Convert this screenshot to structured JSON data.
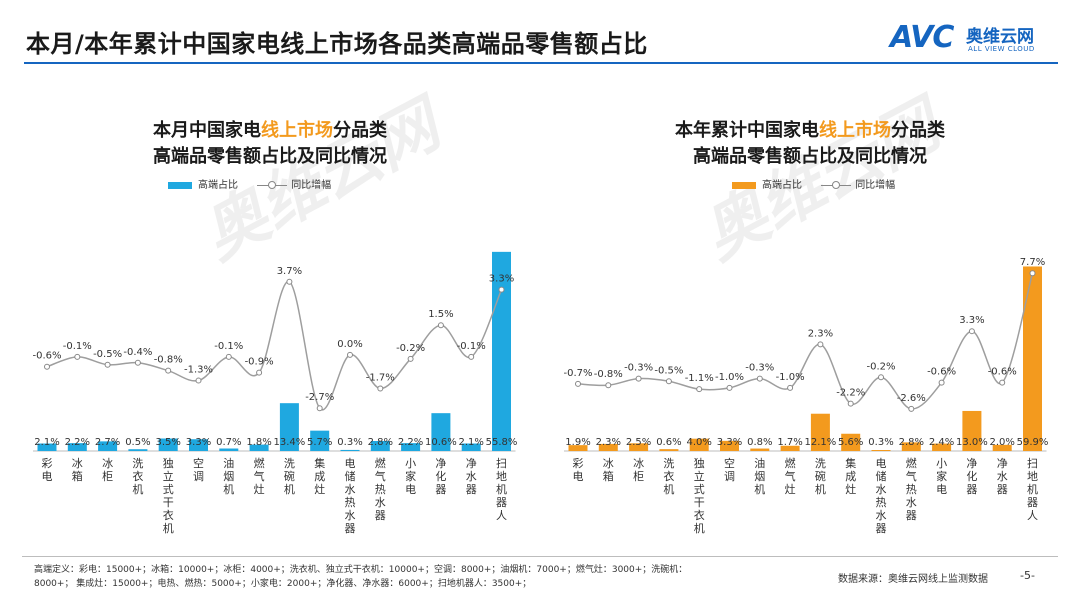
{
  "page": {
    "title": "本月/本年累计中国家电线上市场各品类高端品零售额占比",
    "logo": {
      "mark": "AVC",
      "name_cn": "奥维云网",
      "name_en": "ALL VIEW CLOUD"
    },
    "footnote": "高端定义：彩电：15000+；冰箱：10000+；冰柜：4000+；洗衣机、独立式干衣机：10000+；空调：8000+；油烟机：7000+；燃气灶：3000+；洗碗机：8000+；    集成灶：15000+；电热、燃热：5000+；小家电：2000+；净化器、净水器：6000+；扫地机器人：3500+；",
    "source": "数据来源：奥维云网线上监测数据",
    "page_number": "-5-",
    "watermark": "奥维云网",
    "colors": {
      "accent_blue": "#1565c0",
      "bar_left": "#1fa8e0",
      "bar_right": "#f39a1e",
      "line": "#9e9e9e",
      "highlight": "#f39a1e"
    }
  },
  "chart_data": [
    {
      "type": "bar",
      "title_line1_pre": "本月中国家电",
      "title_line1_hl": "线上市场",
      "title_line1_post": "分品类",
      "title_line2": "高端品零售额占比及同比情况",
      "legend": {
        "bar": "高端占比",
        "line": "同比增幅",
        "placement": "top"
      },
      "categories": [
        "彩电",
        "冰箱",
        "冰柜",
        "洗衣机",
        "独立式干衣机",
        "空调",
        "油烟机",
        "燃气灶",
        "洗碗机",
        "集成灶",
        "电储水热水器",
        "燃气热水器",
        "小家电",
        "净化器",
        "净水器",
        "扫地机器人"
      ],
      "series": [
        {
          "name": "高端占比",
          "kind": "bar",
          "values": [
            2.1,
            2.2,
            2.7,
            0.5,
            3.5,
            3.3,
            0.7,
            1.8,
            13.4,
            5.7,
            0.3,
            2.8,
            2.2,
            10.6,
            2.1,
            55.8
          ],
          "labels": [
            "2.1%",
            "2.2%",
            "2.7%",
            "0.5%",
            "3.5%",
            "3.3%",
            "0.7%",
            "1.8%",
            "13.4%",
            "5.7%",
            "0.3%",
            "2.8%",
            "2.2%",
            "10.6%",
            "2.1%",
            "55.8%"
          ]
        },
        {
          "name": "同比增幅",
          "kind": "line",
          "values": [
            -0.6,
            -0.1,
            -0.5,
            -0.4,
            -0.8,
            -1.3,
            -0.1,
            -0.9,
            3.7,
            -2.7,
            0.0,
            -1.7,
            -0.2,
            1.5,
            -0.1,
            3.3
          ],
          "labels": [
            "-0.6%",
            "-0.1%",
            "-0.5%",
            "-0.4%",
            "-0.8%",
            "-1.3%",
            "-0.1%",
            "-0.9%",
            "3.7%",
            "-2.7%",
            "0.0%",
            "-1.7%",
            "-0.2%",
            "1.5%",
            "-0.1%",
            "3.3%"
          ]
        }
      ],
      "bar_ylim": [
        0,
        58
      ],
      "line_ylim": [
        -3.6,
        4.6
      ],
      "grid": false
    },
    {
      "type": "bar",
      "title_line1_pre": "本年累计中国家电",
      "title_line1_hl": "线上市场",
      "title_line1_post": "分品类",
      "title_line2": "高端品零售额占比及同比情况",
      "legend": {
        "bar": "高端占比",
        "line": "同比增幅",
        "placement": "top"
      },
      "categories": [
        "彩电",
        "冰箱",
        "冰柜",
        "洗衣机",
        "独立式干衣机",
        "空调",
        "油烟机",
        "燃气灶",
        "洗碗机",
        "集成灶",
        "电储水热水器",
        "燃气热水器",
        "小家电",
        "净化器",
        "净水器",
        "扫地机器人"
      ],
      "series": [
        {
          "name": "高端占比",
          "kind": "bar",
          "values": [
            1.9,
            2.3,
            2.5,
            0.6,
            4.0,
            3.3,
            0.8,
            1.7,
            12.1,
            5.6,
            0.3,
            2.8,
            2.4,
            13.0,
            2.0,
            59.9
          ],
          "labels": [
            "1.9%",
            "2.3%",
            "2.5%",
            "0.6%",
            "4.0%",
            "3.3%",
            "0.8%",
            "1.7%",
            "12.1%",
            "5.6%",
            "0.3%",
            "2.8%",
            "2.4%",
            "13.0%",
            "2.0%",
            "59.9%"
          ]
        },
        {
          "name": "同比增幅",
          "kind": "line",
          "values": [
            -0.7,
            -0.8,
            -0.3,
            -0.5,
            -1.1,
            -1.0,
            -0.3,
            -1.0,
            2.3,
            -2.2,
            -0.2,
            -2.6,
            -0.6,
            3.3,
            -0.6,
            7.7
          ],
          "labels": [
            "-0.7%",
            "-0.8%",
            "-0.3%",
            "-0.5%",
            "-1.1%",
            "-1.0%",
            "-0.3%",
            "-1.0%",
            "2.3%",
            "-2.2%",
            "-0.2%",
            "-2.6%",
            "-0.6%",
            "3.3%",
            "-0.6%",
            "7.7%"
          ]
        }
      ],
      "bar_ylim": [
        0,
        62
      ],
      "line_ylim": [
        -4.2,
        8.4
      ],
      "grid": false
    }
  ]
}
